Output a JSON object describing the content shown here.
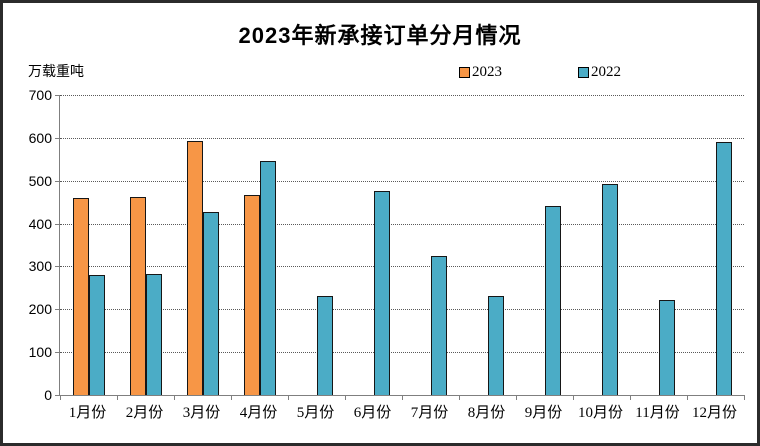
{
  "chart_data": {
    "type": "bar",
    "title": "2023年新承接订单分月情况",
    "ylabel": "万载重吨",
    "xlabel": "",
    "categories": [
      "1月份",
      "2月份",
      "3月份",
      "4月份",
      "5月份",
      "6月份",
      "7月份",
      "8月份",
      "9月份",
      "10月份",
      "11月份",
      "12月份"
    ],
    "series": [
      {
        "name": "2023",
        "color": "#F79646",
        "values": [
          460,
          462,
          593,
          467,
          null,
          null,
          null,
          null,
          null,
          null,
          null,
          null
        ]
      },
      {
        "name": "2022",
        "color": "#4BACC6",
        "values": [
          281,
          283,
          428,
          547,
          230,
          477,
          325,
          231,
          440,
          492,
          221,
          590
        ]
      }
    ],
    "ylim": [
      0,
      700
    ],
    "yticks": [
      0,
      100,
      200,
      300,
      400,
      500,
      600,
      700
    ],
    "grid": "horizontal-dotted",
    "legend_position": "top"
  },
  "colors": {
    "axis": "#7f7f7f",
    "gridline": "#5a5a5a",
    "bar_border": "#161616",
    "frame_border": "#2b2b2b"
  }
}
